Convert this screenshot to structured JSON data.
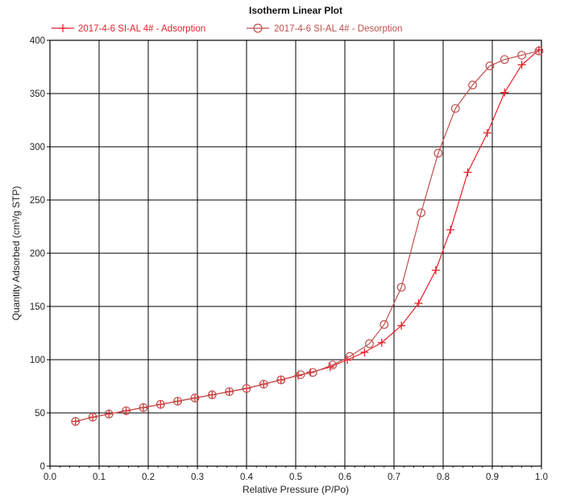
{
  "chart_data": {
    "type": "line",
    "title": "Isotherm Linear Plot",
    "xlabel": "Relative Pressure (P/Po)",
    "ylabel": "Quantity Adsorbed (cm³/g STP)",
    "xlim": [
      0.0,
      1.0
    ],
    "ylim": [
      0,
      400
    ],
    "x_ticks": [
      "0.0",
      "0.1",
      "0.2",
      "0.3",
      "0.4",
      "0.5",
      "0.6",
      "0.7",
      "0.8",
      "0.9",
      "1.0"
    ],
    "y_ticks": [
      "0",
      "50",
      "100",
      "150",
      "200",
      "250",
      "300",
      "350",
      "400"
    ],
    "grid": true,
    "legend_position": "top",
    "series": [
      {
        "name": "2017-4-6 SI-AL 4# - Adsorption",
        "marker": "plus",
        "color": "#e8202a",
        "points": [
          [
            0.052,
            42
          ],
          [
            0.087,
            46
          ],
          [
            0.12,
            49
          ],
          [
            0.155,
            52
          ],
          [
            0.19,
            55
          ],
          [
            0.225,
            58
          ],
          [
            0.26,
            61
          ],
          [
            0.295,
            64
          ],
          [
            0.33,
            67
          ],
          [
            0.365,
            70
          ],
          [
            0.4,
            73
          ],
          [
            0.435,
            77
          ],
          [
            0.47,
            81
          ],
          [
            0.505,
            85
          ],
          [
            0.53,
            88
          ],
          [
            0.57,
            93
          ],
          [
            0.605,
            100
          ],
          [
            0.64,
            107
          ],
          [
            0.675,
            116
          ],
          [
            0.715,
            132
          ],
          [
            0.75,
            153
          ],
          [
            0.785,
            184
          ],
          [
            0.815,
            222
          ],
          [
            0.85,
            276
          ],
          [
            0.89,
            313
          ],
          [
            0.925,
            351
          ],
          [
            0.96,
            377
          ],
          [
            0.995,
            391
          ]
        ]
      },
      {
        "name": "2017-4-6 SI-AL 4# - Desorption",
        "marker": "circle",
        "color": "#c0504d",
        "points": [
          [
            0.995,
            390
          ],
          [
            0.96,
            386
          ],
          [
            0.925,
            382
          ],
          [
            0.895,
            376
          ],
          [
            0.86,
            358
          ],
          [
            0.825,
            336
          ],
          [
            0.79,
            294
          ],
          [
            0.755,
            238
          ],
          [
            0.715,
            168
          ],
          [
            0.68,
            133
          ],
          [
            0.65,
            115
          ],
          [
            0.61,
            103
          ],
          [
            0.575,
            95
          ],
          [
            0.535,
            88
          ],
          [
            0.51,
            86
          ],
          [
            0.47,
            81
          ],
          [
            0.435,
            77
          ],
          [
            0.4,
            73
          ],
          [
            0.365,
            70
          ],
          [
            0.33,
            67
          ],
          [
            0.295,
            64
          ],
          [
            0.26,
            61
          ],
          [
            0.225,
            58
          ],
          [
            0.19,
            55
          ],
          [
            0.155,
            52
          ],
          [
            0.12,
            49
          ],
          [
            0.087,
            46
          ],
          [
            0.052,
            42
          ]
        ]
      }
    ]
  }
}
